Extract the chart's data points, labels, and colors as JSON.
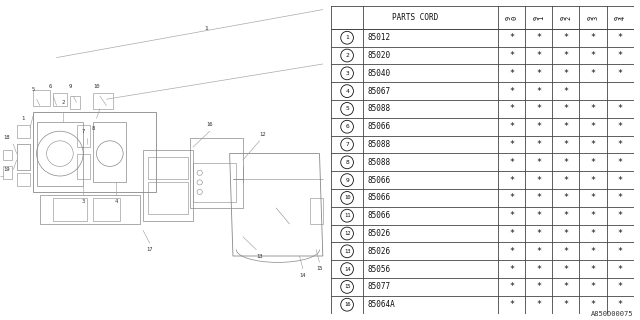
{
  "diagram_ref": "A850D00075",
  "bg_color": "#f0f0f0",
  "table": {
    "header_label": "PARTS CORD",
    "year_labels": [
      "9\n0",
      "9\n1",
      "9\n2",
      "9\n3",
      "9\n4"
    ],
    "rows": [
      {
        "num": 1,
        "part": "85012",
        "stars": [
          1,
          1,
          1,
          1,
          1
        ]
      },
      {
        "num": 2,
        "part": "85020",
        "stars": [
          1,
          1,
          1,
          1,
          1
        ]
      },
      {
        "num": 3,
        "part": "85040",
        "stars": [
          1,
          1,
          1,
          1,
          1
        ]
      },
      {
        "num": 4,
        "part": "85067",
        "stars": [
          1,
          1,
          1,
          0,
          0
        ]
      },
      {
        "num": 5,
        "part": "85088",
        "stars": [
          1,
          1,
          1,
          1,
          1
        ]
      },
      {
        "num": 6,
        "part": "85066",
        "stars": [
          1,
          1,
          1,
          1,
          1
        ]
      },
      {
        "num": 7,
        "part": "85088",
        "stars": [
          1,
          1,
          1,
          1,
          1
        ]
      },
      {
        "num": 8,
        "part": "85088",
        "stars": [
          1,
          1,
          1,
          1,
          1
        ]
      },
      {
        "num": 9,
        "part": "85066",
        "stars": [
          1,
          1,
          1,
          1,
          1
        ]
      },
      {
        "num": 10,
        "part": "85066",
        "stars": [
          1,
          1,
          1,
          1,
          1
        ]
      },
      {
        "num": 11,
        "part": "85066",
        "stars": [
          1,
          1,
          1,
          1,
          1
        ]
      },
      {
        "num": 12,
        "part": "85026",
        "stars": [
          1,
          1,
          1,
          1,
          1
        ]
      },
      {
        "num": 13,
        "part": "85026",
        "stars": [
          1,
          1,
          1,
          1,
          1
        ]
      },
      {
        "num": 14,
        "part": "85056",
        "stars": [
          1,
          1,
          1,
          1,
          1
        ]
      },
      {
        "num": 15,
        "part": "85077",
        "stars": [
          1,
          1,
          1,
          1,
          1
        ]
      },
      {
        "num": 16,
        "part": "85064A",
        "stars": [
          1,
          1,
          1,
          1,
          1
        ]
      }
    ]
  },
  "line_color": "#444444",
  "text_color": "#111111",
  "diagram_line_color": "#888888",
  "label_color": "#333333"
}
